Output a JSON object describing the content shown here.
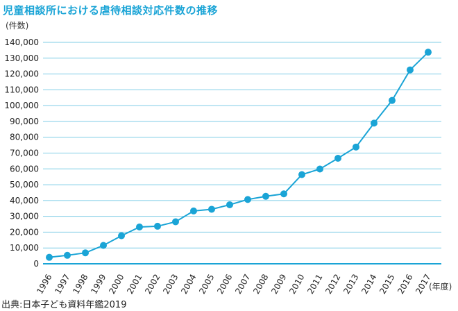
{
  "title": "児童相談所における虐待相談対応件数の推移",
  "source": "出典:日本子ども資料年鑑2019",
  "colors": {
    "accent": "#1aa4d6",
    "grid": "#7fcde6"
  },
  "chart_data": {
    "type": "line",
    "title": "児童相談所における虐待相談対応件数の推移",
    "ylabel": "(件数)",
    "xlabel": "(年度)",
    "categories": [
      "1996",
      "1997",
      "1998",
      "1999",
      "2000",
      "2001",
      "2002",
      "2003",
      "2004",
      "2005",
      "2006",
      "2007",
      "2008",
      "2009",
      "2010",
      "2011",
      "2012",
      "2013",
      "2014",
      "2015",
      "2016",
      "2017"
    ],
    "values": [
      4102,
      5352,
      6932,
      11631,
      17725,
      23274,
      23738,
      26569,
      33408,
      34472,
      37323,
      40639,
      42664,
      44211,
      56384,
      59919,
      66701,
      73802,
      88931,
      103286,
      122575,
      133778
    ],
    "ylim": [
      0,
      140000
    ],
    "yticks": [
      0,
      10000,
      20000,
      30000,
      40000,
      50000,
      60000,
      70000,
      80000,
      90000,
      100000,
      110000,
      120000,
      130000,
      140000
    ],
    "ytick_labels": [
      "0",
      "10,000",
      "20,000",
      "30,000",
      "40,000",
      "50,000",
      "60,000",
      "70,000",
      "80,000",
      "90,000",
      "100,000",
      "110,000",
      "120,000",
      "130,000",
      "140,000"
    ],
    "grid": true,
    "legend": "none"
  }
}
